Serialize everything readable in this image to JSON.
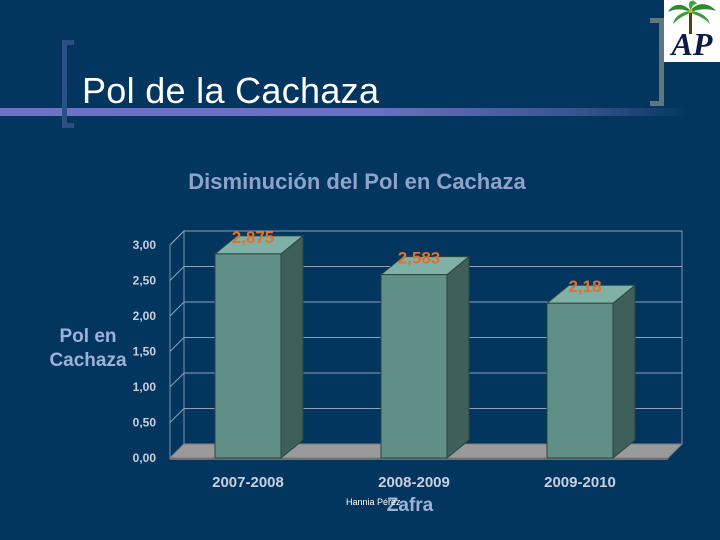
{
  "slide": {
    "title": "Pol de la Cachaza",
    "logo_text": "AP",
    "footer_credit": "Hannia Pérez"
  },
  "colors": {
    "background": "#02365f",
    "bar_front": "#5f8f86",
    "bar_side": "#3f5f5a",
    "bar_top": "#7fb1a6",
    "chart_title": "#8fa3c8",
    "axis_text": "#c8d0e0",
    "value_label": "#e07030",
    "axis_title": "#9fb1d8"
  },
  "chart_data": {
    "type": "bar",
    "title": "Disminución del Pol en Cachaza",
    "categories": [
      "2007-2008",
      "2008-2009",
      "2009-2010"
    ],
    "values": [
      2.875,
      2.583,
      2.18
    ],
    "value_labels": [
      "2,875",
      "2,583",
      "2,18"
    ],
    "xlabel": "Zafra",
    "ylabel_lines": [
      "Pol en",
      "Cachaza"
    ],
    "ylim": [
      0,
      3
    ],
    "yticks": [
      "0,00",
      "0,50",
      "1,00",
      "1,50",
      "2,00",
      "2,50",
      "3,00"
    ],
    "grid": true,
    "three_d": true
  }
}
